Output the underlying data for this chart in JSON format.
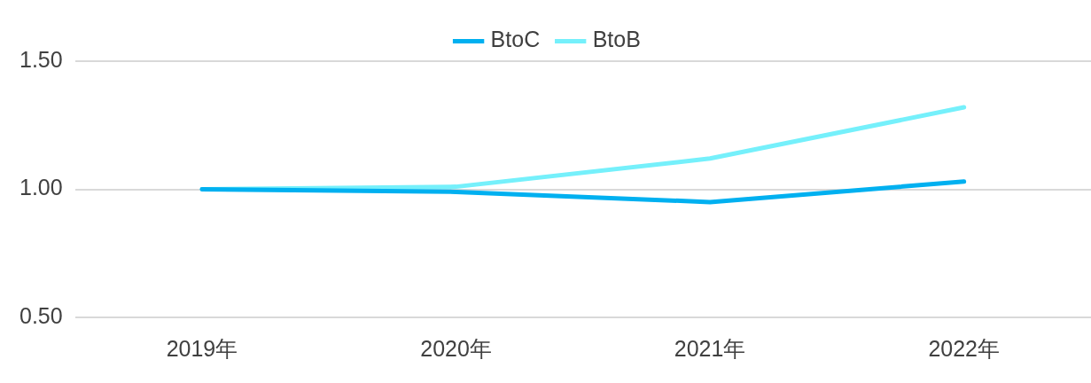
{
  "chart_data": {
    "type": "line",
    "categories": [
      "2019年",
      "2020年",
      "2021年",
      "2022年"
    ],
    "series": [
      {
        "name": "BtoC",
        "color": "#00b0f0",
        "values": [
          1.0,
          0.99,
          0.95,
          1.03
        ]
      },
      {
        "name": "BtoB",
        "color": "#75f0fb",
        "values": [
          1.0,
          1.01,
          1.12,
          1.32
        ]
      }
    ],
    "ylim": [
      0.5,
      1.5
    ],
    "yticks": [
      {
        "value": 0.5,
        "label": "0.50"
      },
      {
        "value": 1.0,
        "label": "1.00"
      },
      {
        "value": 1.5,
        "label": "1.50"
      }
    ],
    "grid": "y",
    "legend": "top",
    "marker": "none",
    "line_style": "solid"
  }
}
